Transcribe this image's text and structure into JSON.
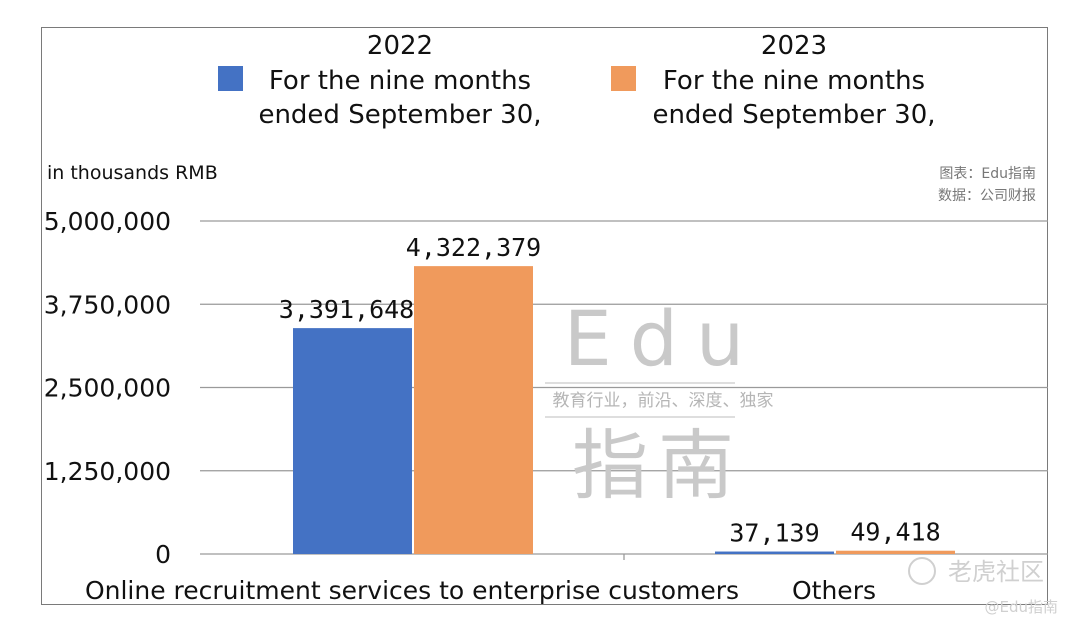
{
  "chart_data": {
    "type": "bar",
    "categories": [
      "Online recruitment services to enterprise customers",
      "Others"
    ],
    "series": [
      {
        "name": "For the nine months ended September 30,",
        "group": "2022",
        "color": "#4472c4",
        "values": [
          3391648,
          37139
        ],
        "labels": [
          "3,391,648",
          "37,139"
        ]
      },
      {
        "name": "For the nine months ended September 30,",
        "group": "2023",
        "color": "#f09a5c",
        "values": [
          4322379,
          49418
        ],
        "labels": [
          "4,322,379",
          "49,418"
        ]
      }
    ],
    "ylabel": "in thousands RMB",
    "ylim": [
      0,
      5000000
    ],
    "yticks": [
      0,
      1250000,
      2500000,
      3750000,
      5000000
    ],
    "ytick_labels": [
      "0",
      "1,250,000",
      "2,500,000",
      "3,750,000",
      "5,000,000"
    ],
    "grid": true,
    "legend_position": "top"
  },
  "legend": {
    "items": [
      {
        "year": "2022",
        "line1": "For the nine months",
        "line2": "ended September 30,"
      },
      {
        "year": "2023",
        "line1": "For the nine months",
        "line2": "ended September 30,"
      }
    ]
  },
  "source_note": {
    "line1": "图表：Edu指南",
    "line2": "数据：公司财报"
  },
  "watermark": {
    "top": "Edu",
    "tagline": "教育行业，前沿、深度、独家",
    "bottom": "指南"
  },
  "corner_watermark": {
    "site": "老虎社区",
    "handle": "@Edu指南"
  }
}
